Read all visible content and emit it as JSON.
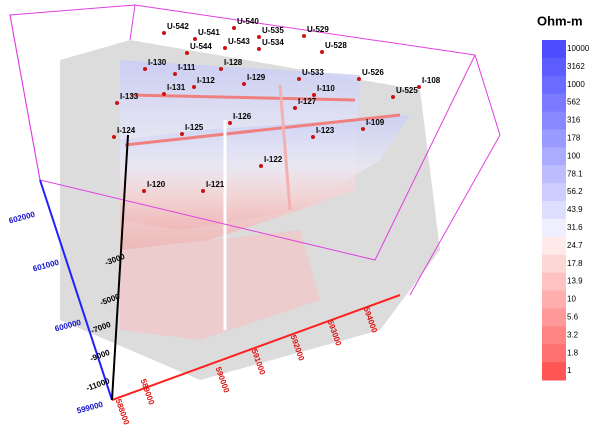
{
  "legend": {
    "title": "Ohm-m",
    "labels": [
      "10000",
      "3162",
      "1000",
      "562",
      "316",
      "178",
      "100",
      "78.1",
      "56.2",
      "43.9",
      "31.6",
      "24.7",
      "17.8",
      "13.9",
      "10",
      "5.6",
      "3.2",
      "1.8",
      "1"
    ],
    "colors": [
      "#4d4dff",
      "#5c5cff",
      "#6b6bff",
      "#7a7aff",
      "#8989ff",
      "#9a9aff",
      "#ababff",
      "#bcbcff",
      "#cdcdff",
      "#dedeff",
      "#efefff",
      "#ffe9e9",
      "#ffd6d6",
      "#ffc2c2",
      "#ffadad",
      "#ff9999",
      "#ff8585",
      "#ff7070",
      "#ff5555"
    ]
  },
  "wells": [
    "U-542",
    "U-541",
    "U-540",
    "U-535",
    "U-529",
    "U-544",
    "U-543",
    "U-534",
    "U-528",
    "I-130",
    "I-111",
    "I-128",
    "U-533",
    "U-526",
    "I-133",
    "I-131",
    "I-112",
    "I-129",
    "I-127",
    "I-110",
    "U-525",
    "I-108",
    "I-124",
    "I-125",
    "I-126",
    "I-123",
    "I-109",
    "I-122",
    "I-120",
    "I-121"
  ],
  "axes": {
    "x_ticks": [
      "588000",
      "589000",
      "590000",
      "591000",
      "592000",
      "593000",
      "594000"
    ],
    "y_ticks": [
      "599000",
      "600000",
      "601000",
      "602000"
    ],
    "z_ticks": [
      "-3000",
      "-5000",
      "-7000",
      "-9000",
      "-11000"
    ]
  }
}
